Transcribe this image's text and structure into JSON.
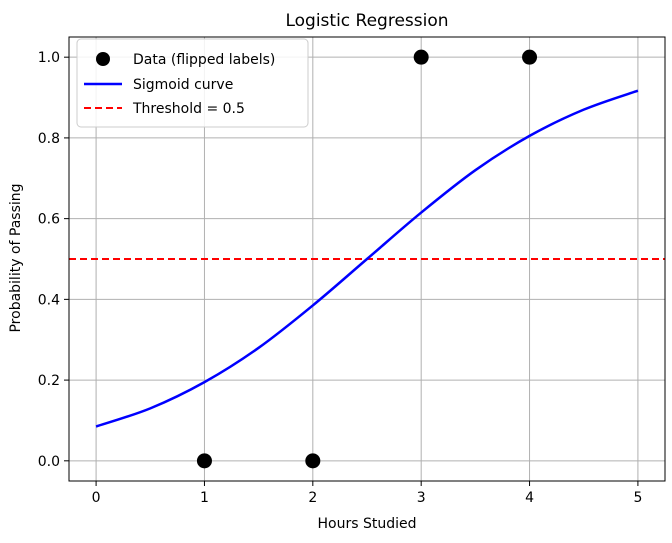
{
  "chart_data": {
    "type": "scatter",
    "title": "Logistic Regression",
    "xlabel": "Hours Studied",
    "ylabel": "Probability of Passing",
    "xlim": [
      -0.25,
      5.25
    ],
    "ylim": [
      -0.05,
      1.05
    ],
    "grid": true,
    "legend_position": "top-left",
    "x_ticks": [
      0,
      1,
      2,
      3,
      4,
      5
    ],
    "x_tick_labels": [
      "0",
      "1",
      "2",
      "3",
      "4",
      "5"
    ],
    "y_ticks": [
      0.0,
      0.2,
      0.4,
      0.6,
      0.8,
      1.0
    ],
    "y_tick_labels": [
      "0.0",
      "0.2",
      "0.4",
      "0.6",
      "0.8",
      "1.0"
    ],
    "series": [
      {
        "name": "Data (flipped labels)",
        "kind": "scatter",
        "color": "#000000",
        "x": [
          1,
          2,
          3,
          4
        ],
        "y": [
          0,
          0,
          1,
          1
        ]
      },
      {
        "name": "Sigmoid curve",
        "kind": "line",
        "color": "#0000ff",
        "x": [
          0,
          0.5,
          1,
          1.5,
          2,
          2.5,
          3,
          3.5,
          4,
          4.5,
          5
        ],
        "y": [
          0.085,
          0.13,
          0.195,
          0.28,
          0.385,
          0.5,
          0.615,
          0.72,
          0.805,
          0.87,
          0.917
        ]
      },
      {
        "name": "Threshold = 0.5",
        "kind": "hline",
        "color": "#ff0000",
        "linestyle": "dashed",
        "y": 0.5
      }
    ]
  }
}
